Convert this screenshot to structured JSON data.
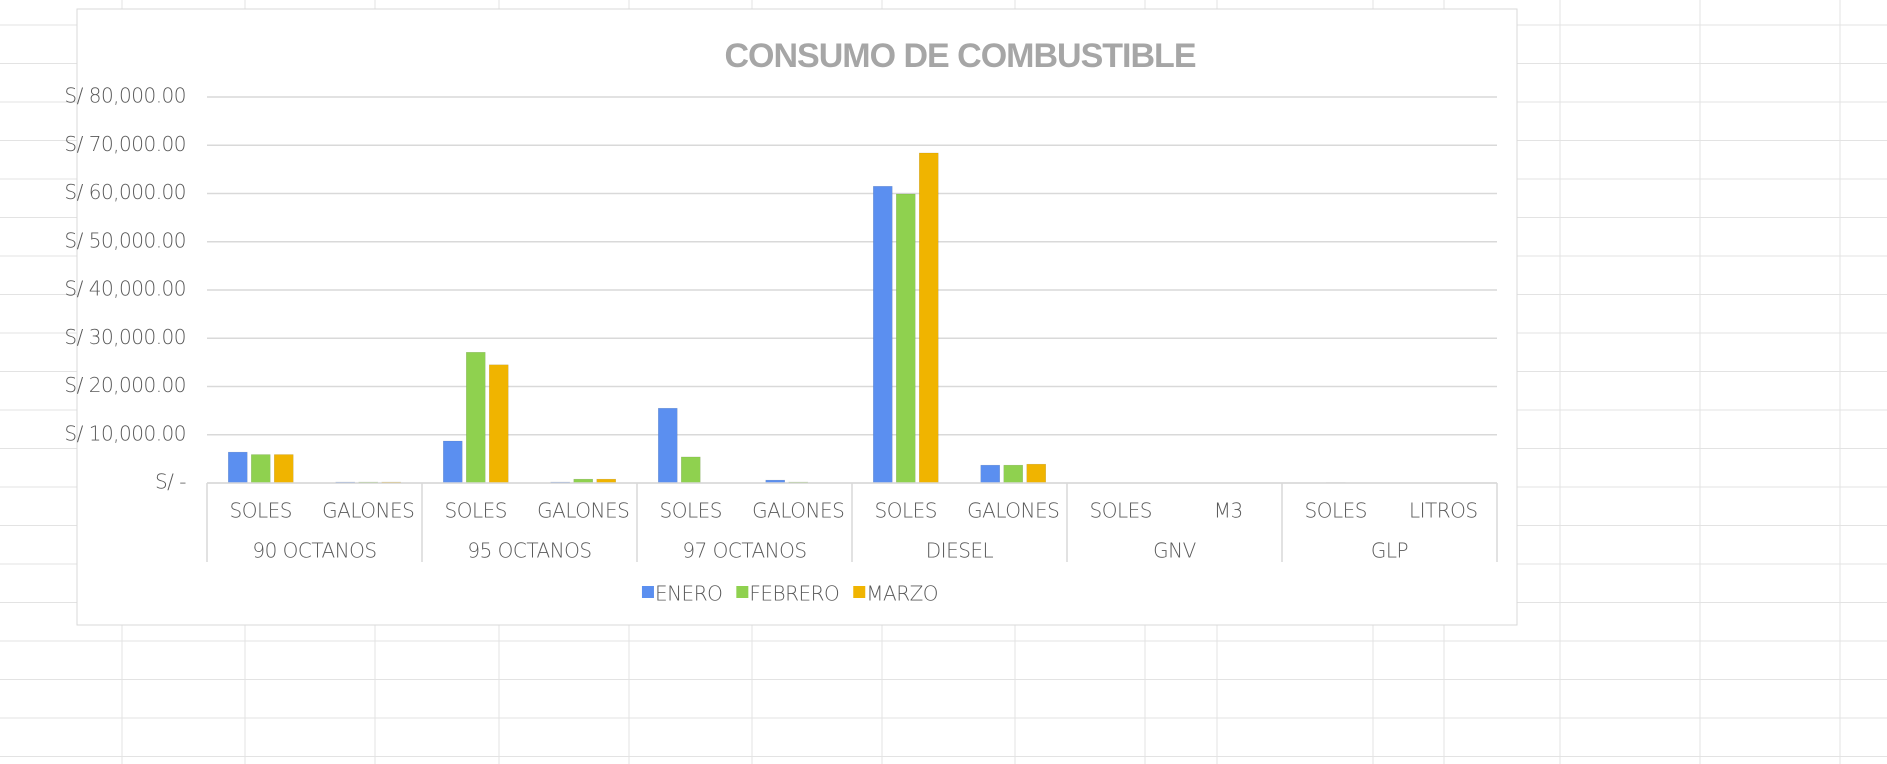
{
  "chart_data": {
    "type": "bar",
    "title": "CONSUMO DE COMBUSTIBLE",
    "categories": [
      "SOLES",
      "GALONES",
      "SOLES",
      "GALONES",
      "SOLES",
      "GALONES",
      "SOLES",
      "GALONES",
      "SOLES",
      "M3",
      "SOLES",
      "LITROS"
    ],
    "groups": [
      "90 OCTANOS",
      "95 OCTANOS",
      "97 OCTANOS",
      "DIESEL",
      "GNV",
      "GLP"
    ],
    "series": [
      {
        "name": "ENERO",
        "color": "#5b8ff0",
        "values": [
          6400,
          200,
          8700,
          200,
          15500,
          600,
          61500,
          3700,
          0,
          0,
          0,
          0
        ]
      },
      {
        "name": "FEBRERO",
        "color": "#8fd14f",
        "values": [
          5900,
          200,
          27100,
          800,
          5400,
          200,
          59900,
          3700,
          0,
          0,
          100,
          50
        ]
      },
      {
        "name": "MARZO",
        "color": "#f0b400",
        "values": [
          5900,
          200,
          24500,
          800,
          0,
          0,
          68400,
          3900,
          0,
          0,
          0,
          0
        ]
      }
    ],
    "ylim": [
      0,
      80000
    ],
    "yticks": [
      {
        "value": 0,
        "label": "S/ -"
      },
      {
        "value": 10000,
        "label": "S/ 10,000.00"
      },
      {
        "value": 20000,
        "label": "S/ 20,000.00"
      },
      {
        "value": 30000,
        "label": "S/ 30,000.00"
      },
      {
        "value": 40000,
        "label": "S/ 40,000.00"
      },
      {
        "value": 50000,
        "label": "S/ 50,000.00"
      },
      {
        "value": 60000,
        "label": "S/ 60,000.00"
      },
      {
        "value": 70000,
        "label": "S/ 70,000.00"
      },
      {
        "value": 80000,
        "label": "S/ 80,000.00"
      }
    ],
    "grid": true,
    "legend": "bottom"
  }
}
